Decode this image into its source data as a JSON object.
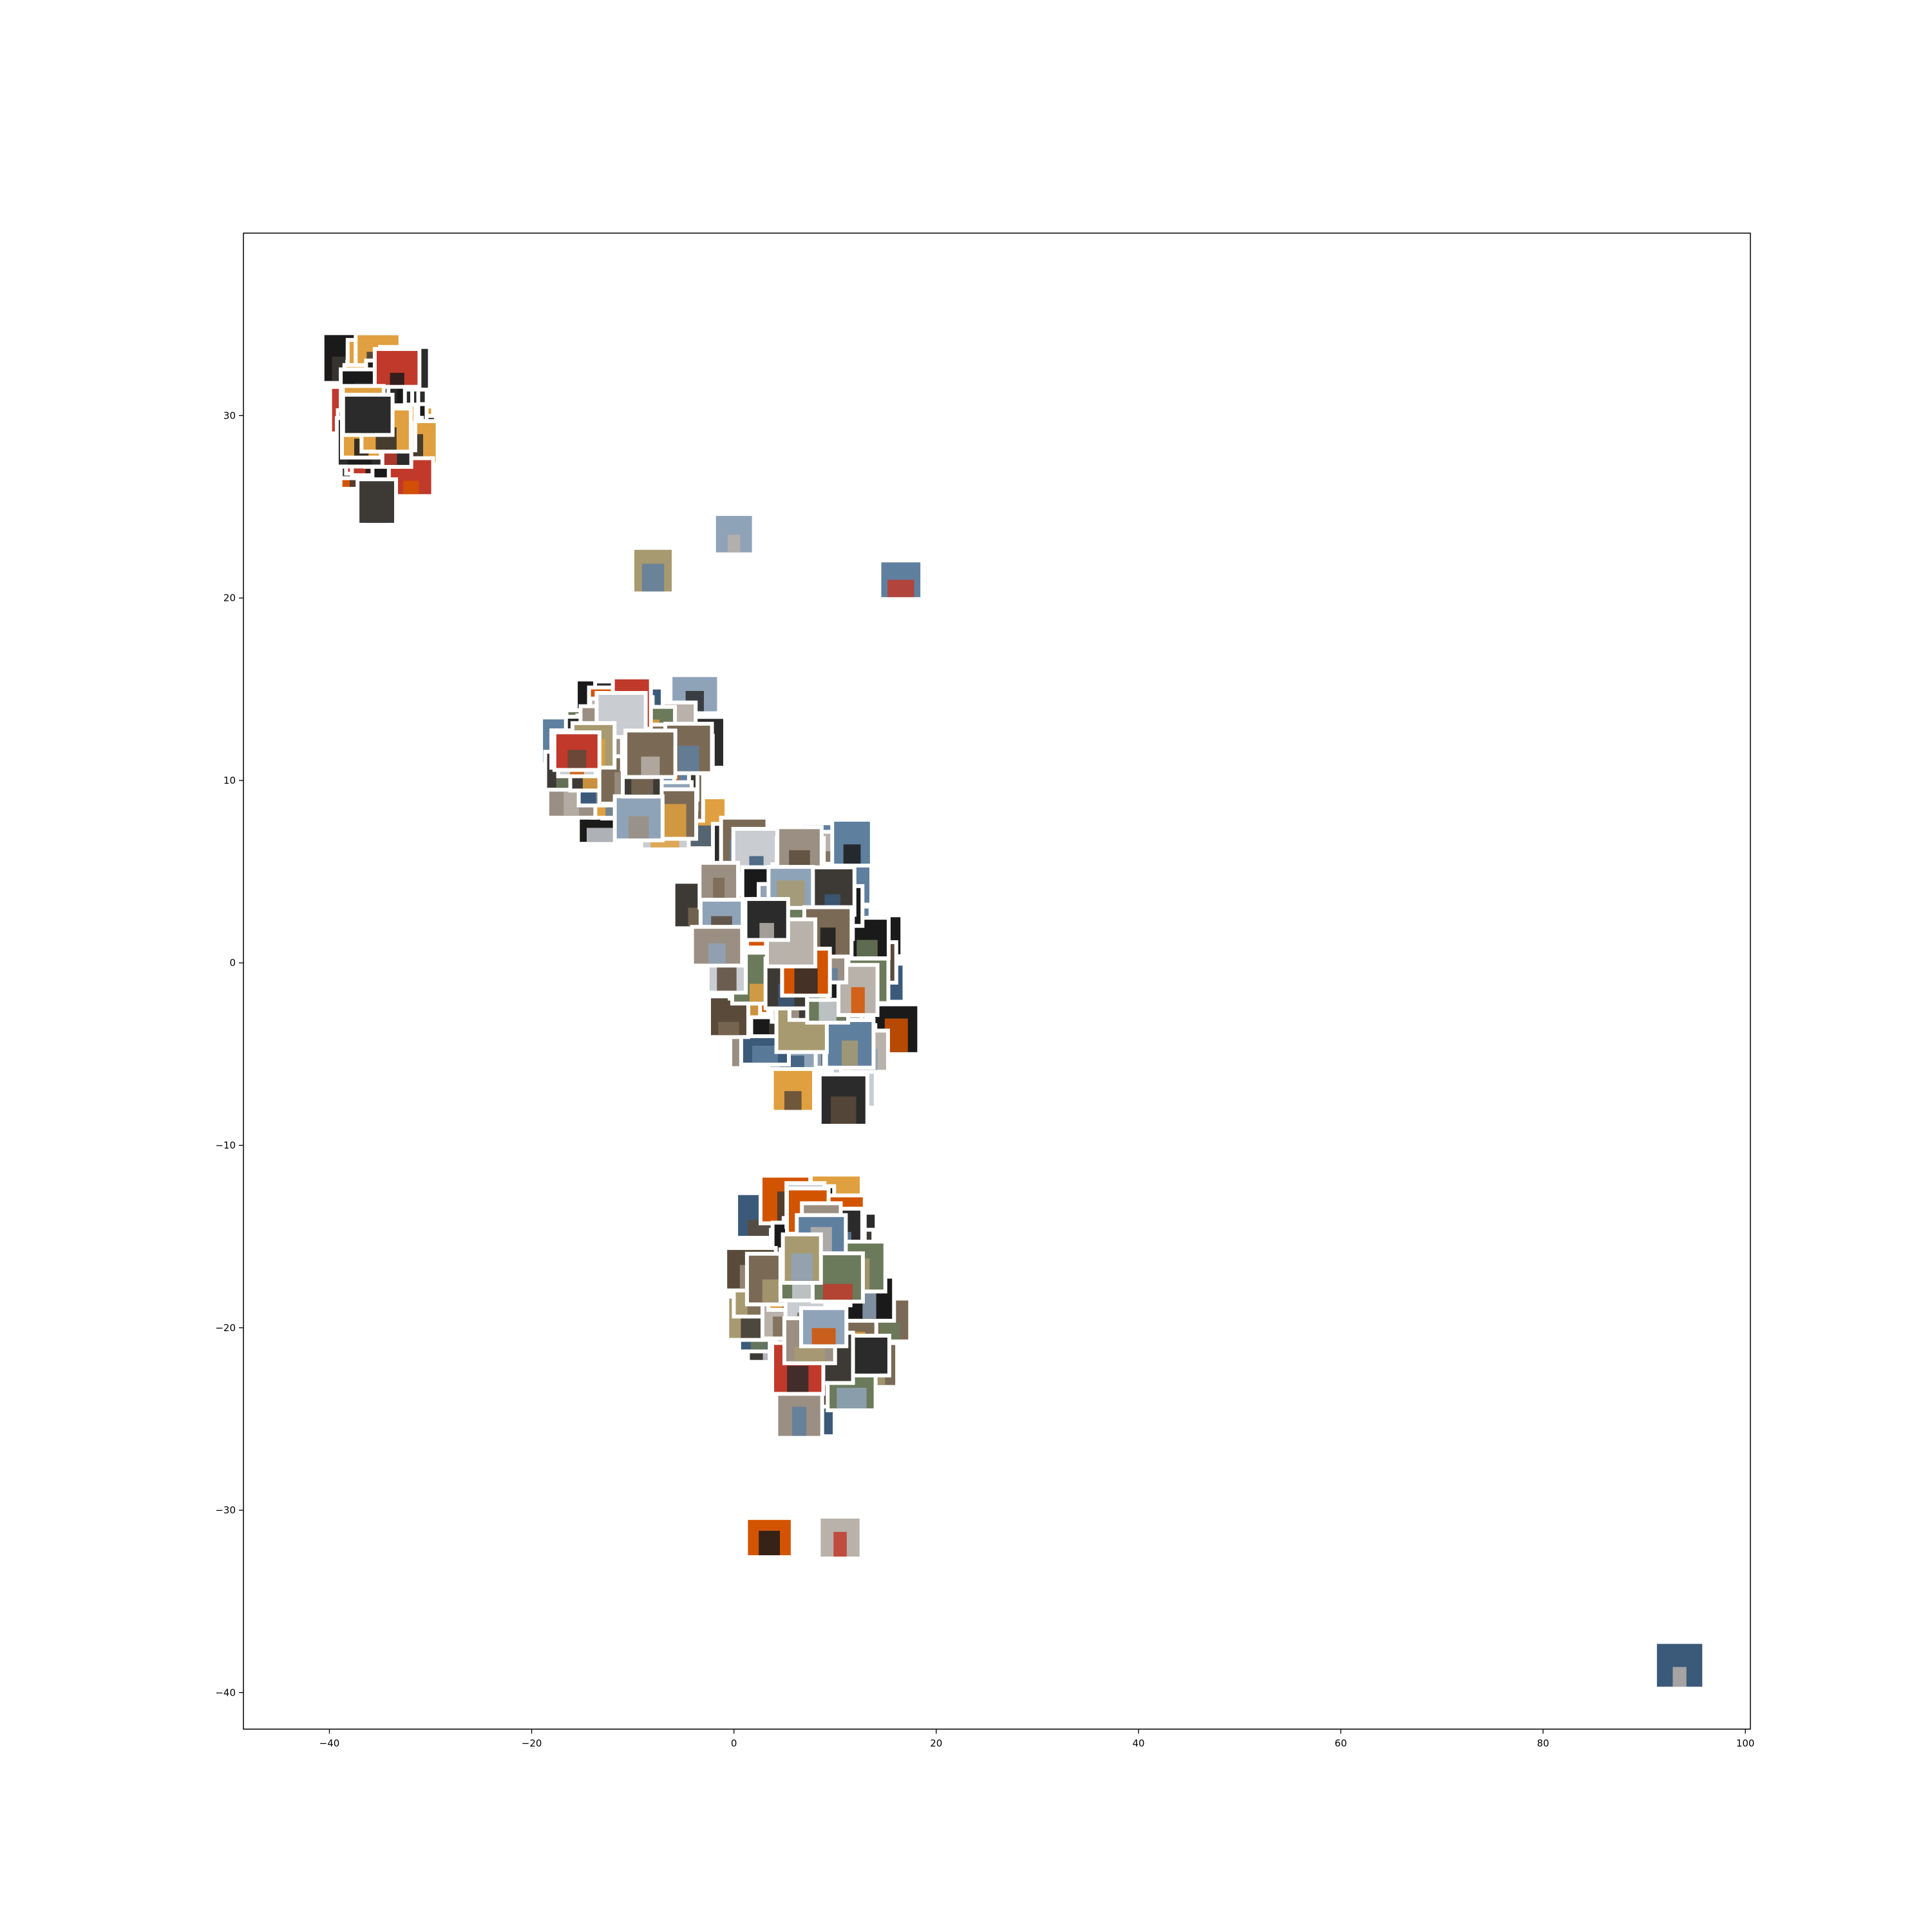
{
  "chart_data": {
    "type": "scatter",
    "title": "",
    "xlabel": "",
    "ylabel": "",
    "xlim": [
      -48.5,
      100.5
    ],
    "ylim": [
      -42.0,
      40.0
    ],
    "grid": false,
    "x_ticks": [
      -40,
      -20,
      0,
      20,
      40,
      60,
      80,
      100
    ],
    "y_ticks": [
      30,
      20,
      10,
      0,
      -10,
      -20,
      -30,
      -40
    ],
    "x_tick_labels": [
      "−40",
      "−20",
      "0",
      "20",
      "40",
      "60",
      "80",
      "100"
    ],
    "y_tick_labels": [
      "30",
      "20",
      "10",
      "0",
      "−10",
      "−20",
      "−30",
      "−40"
    ],
    "marker": "image thumbnail",
    "marker_color_palette": [
      "#1a1a1a",
      "#2b2b2b",
      "#3d3a35",
      "#5a4a3a",
      "#7a6a55",
      "#9a8f82",
      "#b8b2aa",
      "#c9cdd2",
      "#8fa3b8",
      "#5f7f9f",
      "#3b5a7a",
      "#c0392b",
      "#d35400",
      "#e0a040",
      "#6b7a5a",
      "#a89a70"
    ],
    "clusters": [
      {
        "center": [
          -35.0,
          30.0
        ],
        "spread": [
          5.5,
          5.0
        ],
        "count": 70,
        "palette": "night"
      },
      {
        "center": [
          -10.0,
          11.0
        ],
        "spread": [
          9.0,
          6.0
        ],
        "count": 90,
        "palette": "day"
      },
      {
        "center": [
          6.0,
          0.0
        ],
        "spread": [
          12.0,
          9.0
        ],
        "count": 160,
        "palette": "day"
      },
      {
        "center": [
          8.0,
          -18.0
        ],
        "spread": [
          9.0,
          8.0
        ],
        "count": 90,
        "palette": "day"
      }
    ],
    "points": [
      {
        "x": 0.0,
        "y": 23.5
      },
      {
        "x": -8.0,
        "y": 21.5
      },
      {
        "x": 16.5,
        "y": 21.0
      },
      {
        "x": 3.5,
        "y": -31.5
      },
      {
        "x": 10.5,
        "y": -31.5
      },
      {
        "x": 93.5,
        "y": -38.5
      }
    ]
  }
}
